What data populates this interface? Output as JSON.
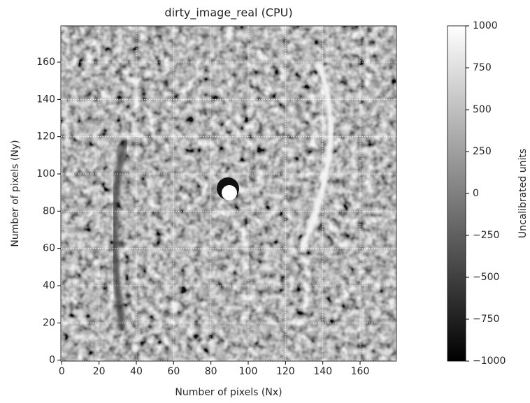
{
  "chart_data": {
    "type": "image",
    "title": "dirty_image_real (CPU)",
    "xlabel": "Number of pixels (Nx)",
    "ylabel": "Number of pixels (Ny)",
    "xlim": [
      -0.5,
      179.5
    ],
    "ylim": [
      -0.5,
      179.5
    ],
    "xticks": [
      0,
      20,
      40,
      60,
      80,
      100,
      120,
      140,
      160
    ],
    "yticks": [
      0,
      20,
      40,
      60,
      80,
      100,
      120,
      140,
      160
    ],
    "grid": true,
    "colorbar": {
      "label": "Uncalibrated units",
      "lim": [
        -1000,
        1000
      ],
      "ticks": [
        {
          "value": -1000,
          "label": "−1000"
        },
        {
          "value": -750,
          "label": "−750"
        },
        {
          "value": -500,
          "label": "−500"
        },
        {
          "value": -250,
          "label": "−250"
        },
        0,
        250,
        500,
        750,
        1000
      ],
      "colors": [
        "#000000",
        "#ffffff"
      ]
    }
  }
}
